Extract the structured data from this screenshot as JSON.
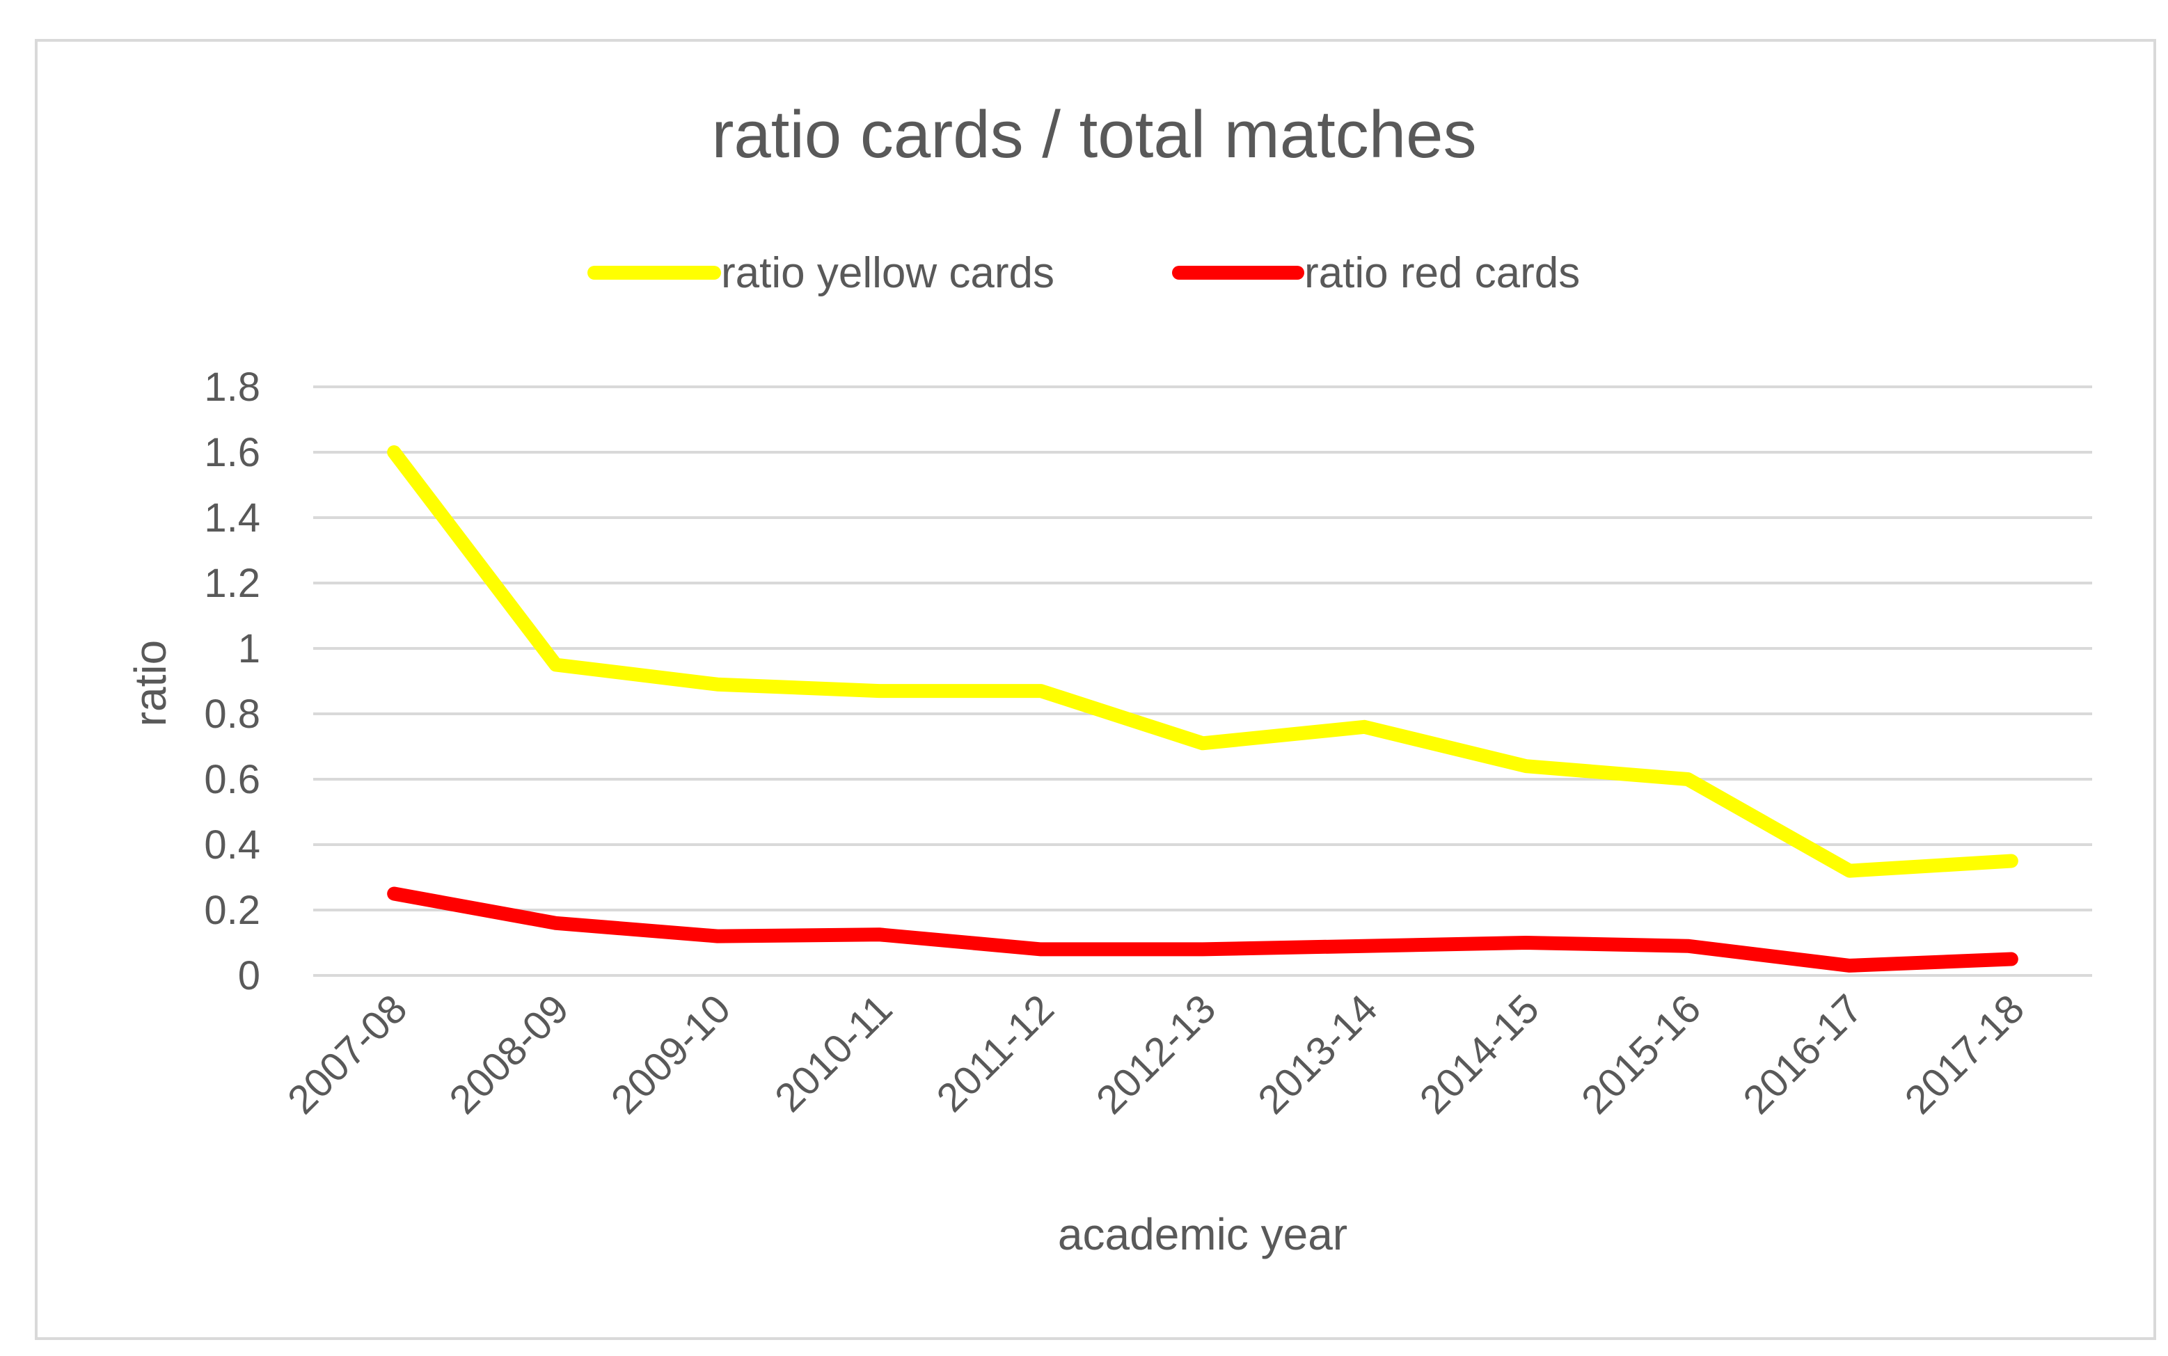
{
  "chart_data": {
    "type": "line",
    "title": "ratio cards / total matches",
    "xlabel": "academic year",
    "ylabel": "ratio",
    "ylim": [
      0,
      1.8
    ],
    "yticks": [
      "0",
      "0.2",
      "0.4",
      "0.6",
      "0.8",
      "1",
      "1.2",
      "1.4",
      "1.6",
      "1.8"
    ],
    "grid": true,
    "legend_position": "top",
    "categories": [
      "2007-08",
      "2008-09",
      "2009-10",
      "2010-11",
      "2011-12",
      "2012-13",
      "2013-14",
      "2014-15",
      "2015-16",
      "2016-17",
      "2017-18"
    ],
    "series": [
      {
        "name": "ratio yellow cards",
        "color": "#ffff00",
        "values": [
          1.6,
          0.95,
          0.89,
          0.87,
          0.87,
          0.71,
          0.76,
          0.64,
          0.6,
          0.32,
          0.35
        ]
      },
      {
        "name": "ratio red cards",
        "color": "#ff0000",
        "values": [
          0.25,
          0.16,
          0.12,
          0.125,
          0.08,
          0.08,
          0.09,
          0.1,
          0.09,
          0.03,
          0.05
        ]
      }
    ],
    "gridline_color": "#d9d9d9"
  }
}
